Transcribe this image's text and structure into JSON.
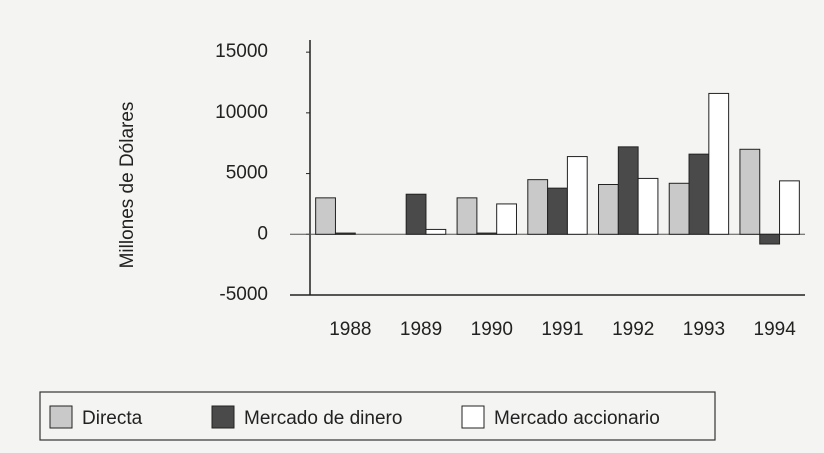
{
  "chart_data": {
    "type": "bar",
    "y_label": "Millones de Dólares",
    "categories": [
      "1988",
      "1989",
      "1990",
      "1991",
      "1992",
      "1993",
      "1994"
    ],
    "series": [
      {
        "name": "Directa",
        "color": "#c9c9c9",
        "values": [
          3000,
          0,
          3000,
          4500,
          4100,
          4200,
          7000
        ]
      },
      {
        "name": "Mercado de dinero",
        "color": "#4a4a4a",
        "values": [
          100,
          3300,
          100,
          3800,
          7200,
          6600,
          -800
        ]
      },
      {
        "name": "Mercado accionario",
        "color": "#ffffff",
        "values": [
          0,
          400,
          2500,
          6400,
          4600,
          11600,
          4400
        ]
      }
    ],
    "ylim": [
      -5000,
      16000
    ],
    "yticks": [
      -5000,
      0,
      5000,
      10000,
      15000
    ],
    "legend": "bottom"
  }
}
